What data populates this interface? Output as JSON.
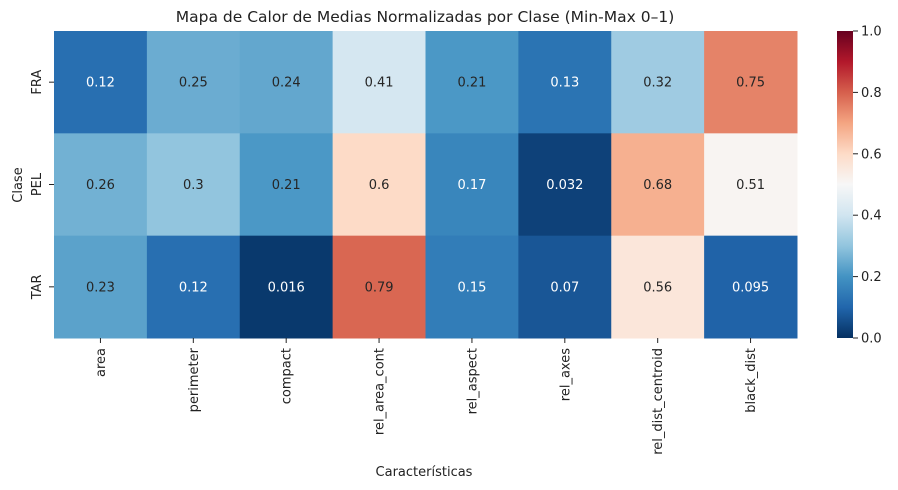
{
  "chart_data": {
    "type": "heatmap",
    "title": "Mapa de Calor de Medias Normalizadas por Clase (Min-Max 0–1)",
    "xlabel": "Características",
    "ylabel": "Clase",
    "x_categories": [
      "area",
      "perimeter",
      "compact",
      "rel_area_cont",
      "rel_aspect",
      "rel_axes",
      "rel_dist_centroid",
      "black_dist"
    ],
    "y_categories": [
      "FRA",
      "PEL",
      "TAR"
    ],
    "values": [
      [
        0.12,
        0.25,
        0.24,
        0.41,
        0.21,
        0.13,
        0.32,
        0.75
      ],
      [
        0.26,
        0.3,
        0.21,
        0.6,
        0.17,
        0.032,
        0.68,
        0.51
      ],
      [
        0.23,
        0.12,
        0.016,
        0.79,
        0.15,
        0.07,
        0.56,
        0.095
      ]
    ],
    "labels": [
      [
        "0.12",
        "0.25",
        "0.24",
        "0.41",
        "0.21",
        "0.13",
        "0.32",
        "0.75"
      ],
      [
        "0.26",
        "0.3",
        "0.21",
        "0.6",
        "0.17",
        "0.032",
        "0.68",
        "0.51"
      ],
      [
        "0.23",
        "0.12",
        "0.016",
        "0.79",
        "0.15",
        "0.07",
        "0.56",
        "0.095"
      ]
    ],
    "colormap": "RdBu_r",
    "vmin": 0,
    "vmax": 1,
    "colorbar_ticks": [
      "0.0",
      "0.2",
      "0.4",
      "0.6",
      "0.8",
      "1.0"
    ]
  }
}
